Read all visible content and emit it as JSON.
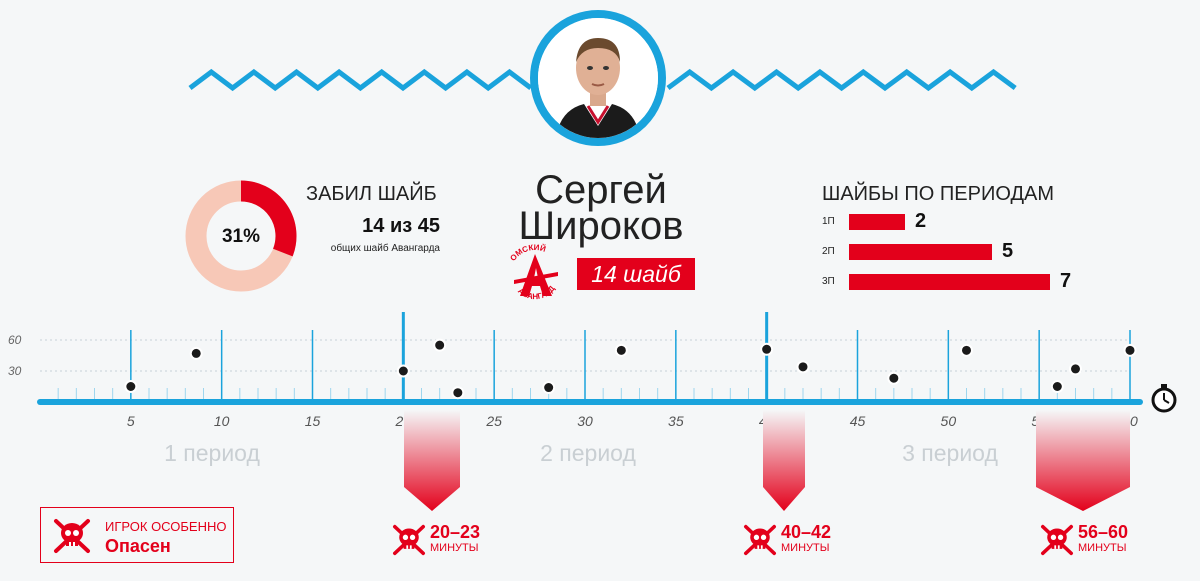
{
  "player": {
    "first_name": "Сергей",
    "last_name": "Широков",
    "goals_badge": "14 шайб",
    "team_logo_text": "ОМСКИЙ АВАНГАРД"
  },
  "scored": {
    "title": "ЗАБИЛ ШАЙБ",
    "value": "14 из 45",
    "note": "общих шайб Авангарда",
    "percent_label": "31%",
    "share": 0.31
  },
  "periods_goals": {
    "title": "ШАЙБЫ ПО ПЕРИОДАМ",
    "rows": [
      {
        "label": "1П",
        "value": 2
      },
      {
        "label": "2П",
        "value": 5
      },
      {
        "label": "3П",
        "value": 7
      }
    ]
  },
  "chart_data": {
    "type": "scatter",
    "x_ticks": [
      5,
      10,
      15,
      20,
      25,
      30,
      35,
      40,
      45,
      50,
      55,
      60
    ],
    "y_ticks": [
      30,
      60
    ],
    "xlim": [
      0,
      60
    ],
    "ylim": [
      0,
      60
    ],
    "points": [
      {
        "x": 5.0,
        "y": 15
      },
      {
        "x": 8.6,
        "y": 47
      },
      {
        "x": 20.0,
        "y": 30
      },
      {
        "x": 22.0,
        "y": 55
      },
      {
        "x": 23.0,
        "y": 9
      },
      {
        "x": 28.0,
        "y": 14
      },
      {
        "x": 32.0,
        "y": 50
      },
      {
        "x": 40.0,
        "y": 51
      },
      {
        "x": 42.0,
        "y": 34
      },
      {
        "x": 47.0,
        "y": 23
      },
      {
        "x": 51.0,
        "y": 50
      },
      {
        "x": 56.0,
        "y": 15
      },
      {
        "x": 57.0,
        "y": 32
      },
      {
        "x": 60.0,
        "y": 50
      }
    ],
    "period_labels": [
      "1 период",
      "2 период",
      "3 период"
    ]
  },
  "danger": {
    "line1": "ИГРОК ОСОБЕННО",
    "line2": "Опасен",
    "zones": [
      {
        "range": "20–23",
        "unit": "МИНУТЫ"
      },
      {
        "range": "40–42",
        "unit": "МИНУТЫ"
      },
      {
        "range": "56–60",
        "unit": "МИНУТЫ"
      }
    ]
  },
  "colors": {
    "accent_blue": "#1aa3dc",
    "accent_red": "#e3001b",
    "donut_bg": "#f7c8b7"
  }
}
